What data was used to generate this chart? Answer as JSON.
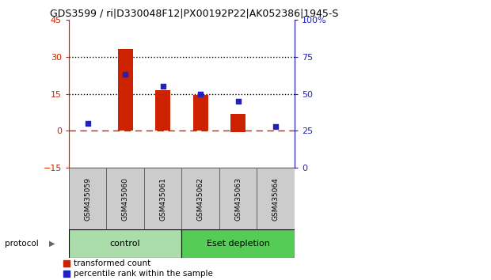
{
  "title": "GDS3599 / ri|D330048F12|PX00192P22|AK052386|1945-S",
  "samples": [
    "GSM435059",
    "GSM435060",
    "GSM435061",
    "GSM435062",
    "GSM435063",
    "GSM435064"
  ],
  "transformed_count": [
    0.0,
    33.0,
    16.5,
    14.5,
    7.0,
    0.0
  ],
  "transformed_count_neg": [
    0.0,
    0.0,
    0.0,
    0.0,
    -0.5,
    0.0
  ],
  "percentile_rank": [
    30,
    63,
    55,
    50,
    45,
    28
  ],
  "red_color": "#cc2200",
  "blue_color": "#2222bb",
  "ylim_left": [
    -15,
    45
  ],
  "ylim_right": [
    0,
    100
  ],
  "yticks_left": [
    -15,
    0,
    15,
    30,
    45
  ],
  "yticks_right": [
    0,
    25,
    50,
    75,
    100
  ],
  "ytick_labels_right": [
    "0",
    "25",
    "50",
    "75",
    "100%"
  ],
  "hlines": [
    15,
    30
  ],
  "group1_label": "control",
  "group2_label": "Eset depletion",
  "group1_color": "#aaddaa",
  "group2_color": "#55cc55",
  "group1_indices": [
    0,
    1,
    2
  ],
  "group2_indices": [
    3,
    4,
    5
  ],
  "legend_red_label": "transformed count",
  "legend_blue_label": "percentile rank within the sample",
  "bar_width": 0.4,
  "protocol_label": "protocol"
}
